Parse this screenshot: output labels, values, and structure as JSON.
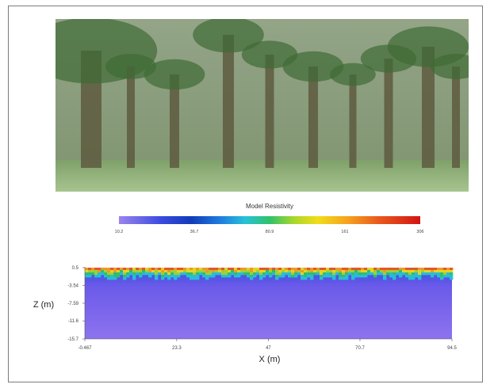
{
  "colorbar": {
    "title": "Model Resistivity",
    "ticks": [
      "10.2",
      "36.7",
      "80.9",
      "161",
      "306"
    ],
    "colors": [
      "#9c84ee",
      "#3a4be0",
      "#123bb9",
      "#1f7fe0",
      "#27c2d6",
      "#2fc26a",
      "#a9d72a",
      "#f0dd18",
      "#f6a11e",
      "#ea5a1b",
      "#d21414"
    ]
  },
  "photo": {
    "subject": "oil palm plantation"
  },
  "chart_data": {
    "type": "heatmap",
    "title": "",
    "xlabel": "X (m)",
    "ylabel": "Z (m)",
    "x_ticks": [
      "-0.467",
      "23.3",
      "47",
      "70.7",
      "94.5"
    ],
    "y_ticks": [
      "0.5",
      "-3.54",
      "-7.59",
      "-11.6",
      "-15.7"
    ],
    "xlim": [
      -0.467,
      94.5
    ],
    "ylim": [
      -15.7,
      0.5
    ],
    "color_scale": {
      "min": 10.2,
      "max": 306,
      "ticks": [
        10.2,
        36.7,
        80.9,
        161,
        306
      ]
    },
    "layers": [
      {
        "depth_range": [
          0.5,
          -1.5
        ],
        "resistivity_range": [
          80.9,
          306
        ]
      },
      {
        "depth_range": [
          -1.5,
          -3.54
        ],
        "resistivity_range": [
          20,
          80.9
        ]
      },
      {
        "depth_range": [
          -3.54,
          -15.7
        ],
        "resistivity_range": [
          10.2,
          20
        ]
      }
    ]
  }
}
